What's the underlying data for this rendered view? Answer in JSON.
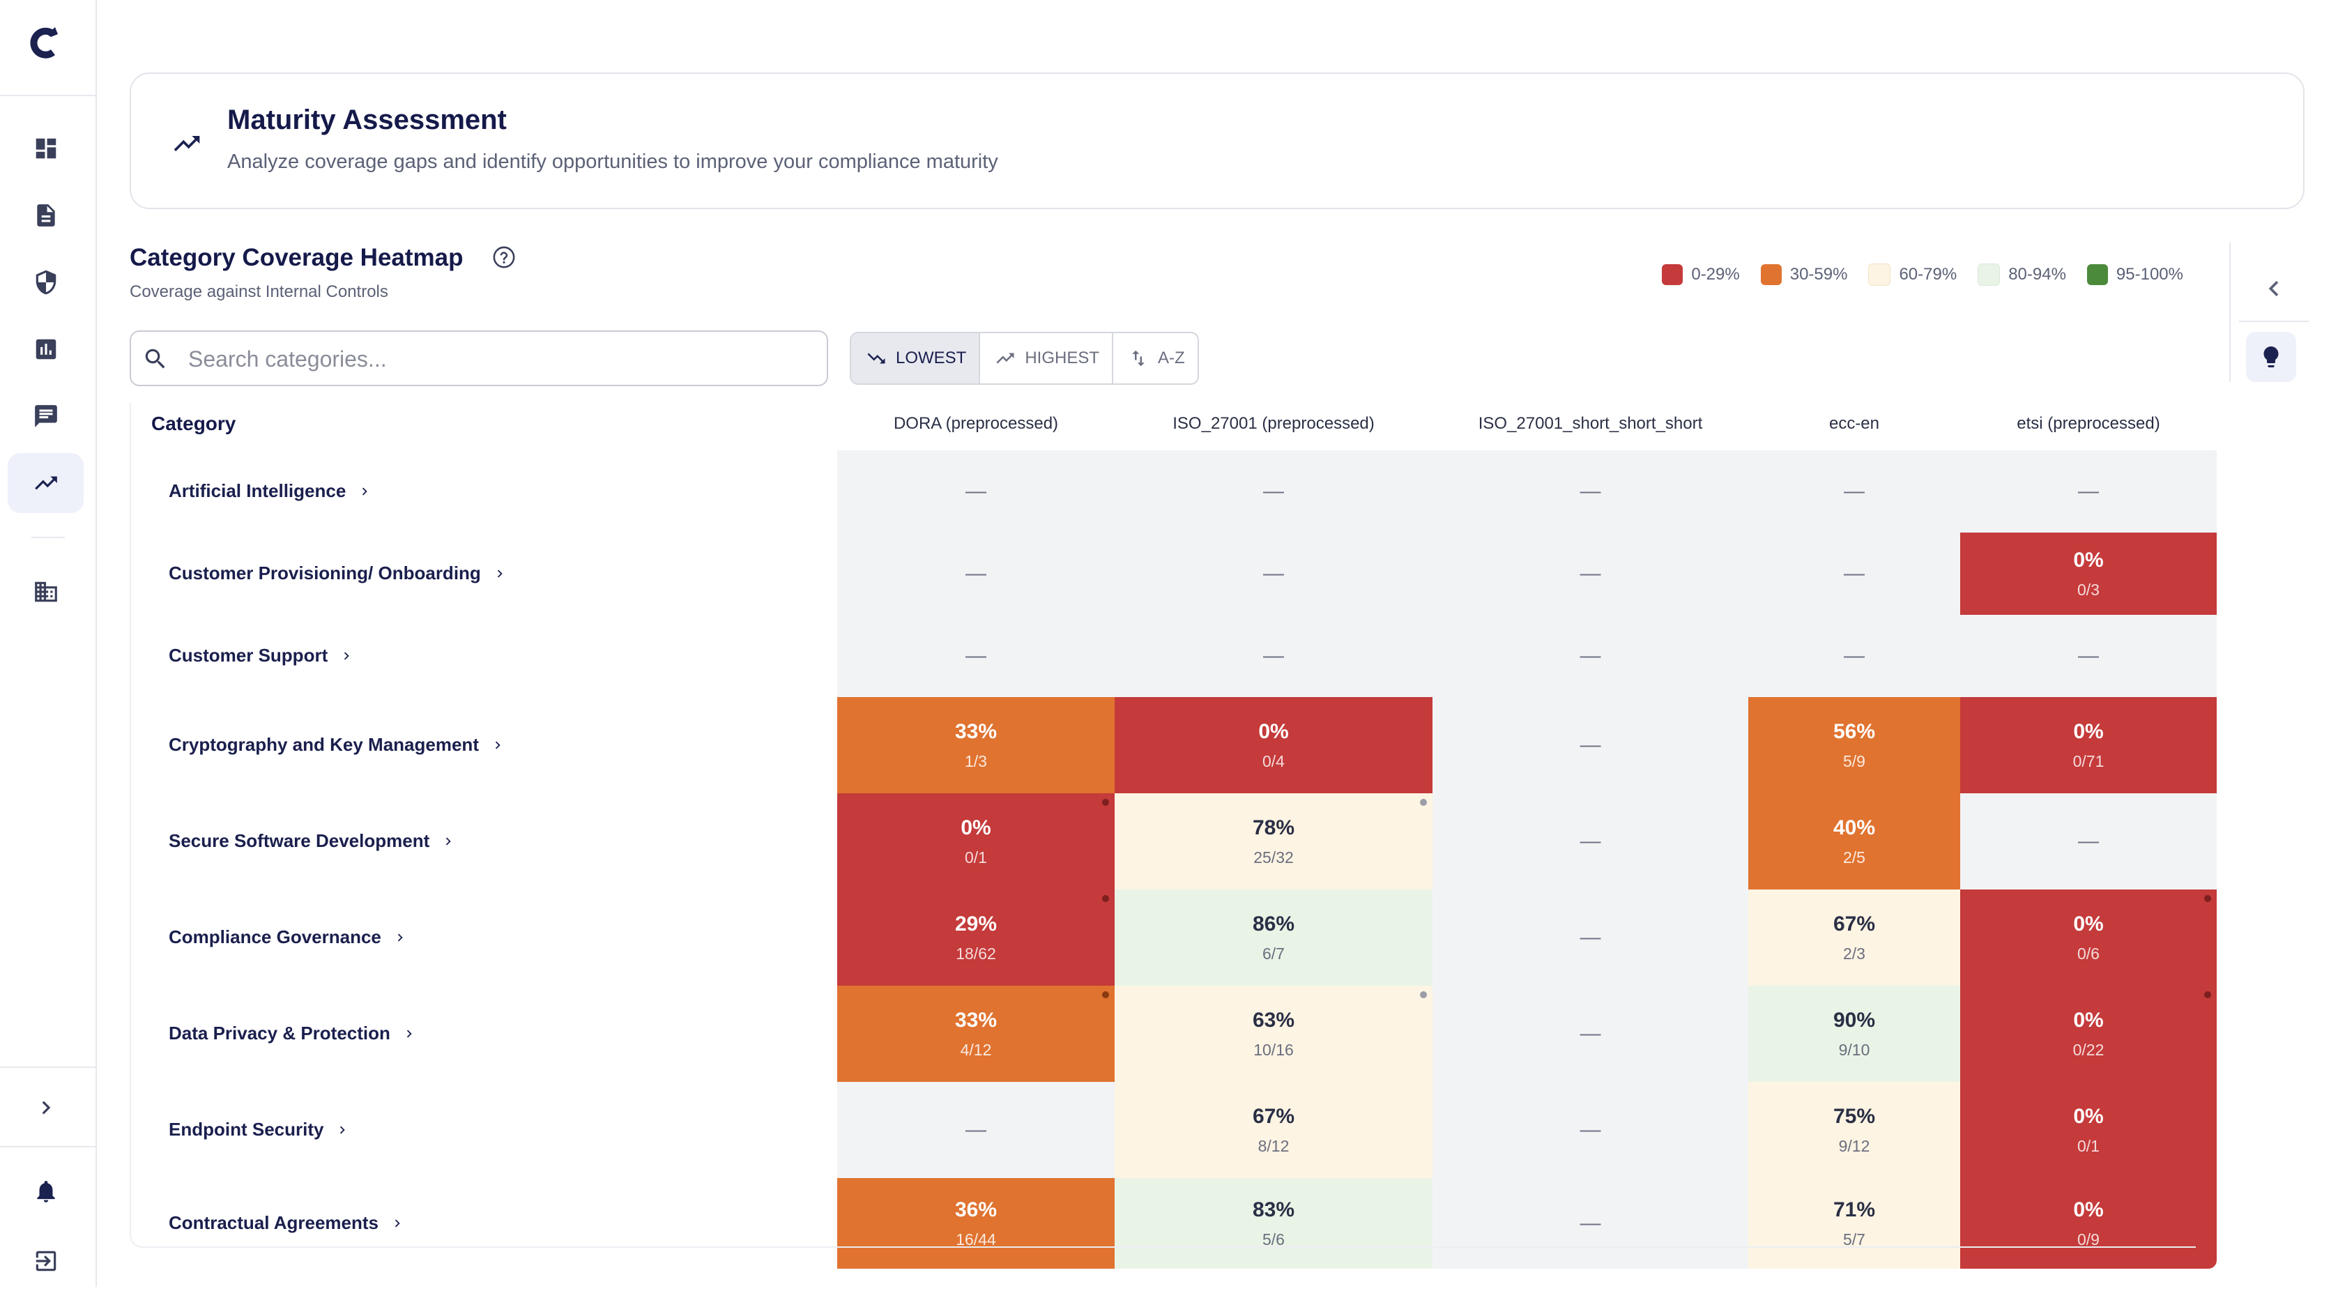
{
  "header": {
    "title": "Maturity Assessment",
    "subtitle": "Analyze coverage gaps and identify opportunities to improve your compliance maturity",
    "icon": "trending-up-icon"
  },
  "sidebar": {
    "logo": "brand-logo",
    "items": [
      {
        "icon": "dashboard-icon",
        "active": false
      },
      {
        "icon": "document-icon",
        "active": false
      },
      {
        "icon": "shield-icon",
        "active": false
      },
      {
        "icon": "bar-chart-icon",
        "active": false
      },
      {
        "icon": "chat-icon",
        "active": false
      },
      {
        "icon": "trending-up-icon",
        "active": true
      },
      {
        "icon": "building-icon",
        "active": false
      }
    ],
    "bottom": [
      "chevron-right-icon",
      "bell-icon",
      "logout-icon"
    ]
  },
  "heatmap": {
    "title": "Category Coverage Heatmap",
    "subtitle": "Coverage against Internal Controls",
    "search_placeholder": "Search categories...",
    "sort_buttons": [
      {
        "label": "LOWEST",
        "selected": true
      },
      {
        "label": "HIGHEST",
        "selected": false
      },
      {
        "label": "A-Z",
        "selected": false
      }
    ],
    "legend": [
      {
        "label": "0-29%",
        "color": "#c53a3a"
      },
      {
        "label": "30-59%",
        "color": "#e07330"
      },
      {
        "label": "60-79%",
        "color": "#fdf4e3"
      },
      {
        "label": "80-94%",
        "color": "#e9f4e7"
      },
      {
        "label": "95-100%",
        "color": "#4b8a3a"
      }
    ],
    "category_header": "Category",
    "columns": [
      "DORA (preprocessed)",
      "ISO_27001 (preprocessed)",
      "ISO_27001_short_short_short",
      "ecc-en",
      "etsi (preprocessed)"
    ],
    "empty_symbol": "—",
    "rows": [
      {
        "category": "Artificial Intelligence",
        "cells": [
          null,
          null,
          null,
          null,
          null
        ]
      },
      {
        "category": "Customer Provisioning/ Onboarding",
        "cells": [
          null,
          null,
          null,
          null,
          {
            "pct": "0%",
            "frac": "0/3"
          }
        ]
      },
      {
        "category": "Customer Support",
        "cells": [
          null,
          null,
          null,
          null,
          null
        ]
      },
      {
        "category": "Cryptography and Key Management",
        "cells": [
          {
            "pct": "33%",
            "frac": "1/3"
          },
          {
            "pct": "0%",
            "frac": "0/4"
          },
          null,
          {
            "pct": "56%",
            "frac": "5/9"
          },
          {
            "pct": "0%",
            "frac": "0/71"
          }
        ]
      },
      {
        "category": "Secure Software Development",
        "cells": [
          {
            "pct": "0%",
            "frac": "0/1",
            "dot": true
          },
          {
            "pct": "78%",
            "frac": "25/32",
            "dot": true
          },
          null,
          {
            "pct": "40%",
            "frac": "2/5"
          },
          null
        ]
      },
      {
        "category": "Compliance Governance",
        "cells": [
          {
            "pct": "29%",
            "frac": "18/62",
            "dot": true
          },
          {
            "pct": "86%",
            "frac": "6/7"
          },
          null,
          {
            "pct": "67%",
            "frac": "2/3"
          },
          {
            "pct": "0%",
            "frac": "0/6",
            "dot": true
          }
        ]
      },
      {
        "category": "Data Privacy & Protection",
        "cells": [
          {
            "pct": "33%",
            "frac": "4/12",
            "dot": true
          },
          {
            "pct": "63%",
            "frac": "10/16",
            "dot": true
          },
          null,
          {
            "pct": "90%",
            "frac": "9/10"
          },
          {
            "pct": "0%",
            "frac": "0/22",
            "dot": true
          }
        ]
      },
      {
        "category": "Endpoint Security",
        "cells": [
          null,
          {
            "pct": "67%",
            "frac": "8/12"
          },
          null,
          {
            "pct": "75%",
            "frac": "9/12"
          },
          {
            "pct": "0%",
            "frac": "0/1"
          }
        ]
      },
      {
        "category": "Contractual Agreements",
        "cells": [
          {
            "pct": "36%",
            "frac": "16/44"
          },
          {
            "pct": "83%",
            "frac": "5/6"
          },
          null,
          {
            "pct": "71%",
            "frac": "5/7"
          },
          {
            "pct": "0%",
            "frac": "0/9"
          }
        ]
      }
    ]
  },
  "right_panel": {
    "collapse_icon": "chevron-left-icon",
    "insight_icon": "lightbulb-icon"
  }
}
